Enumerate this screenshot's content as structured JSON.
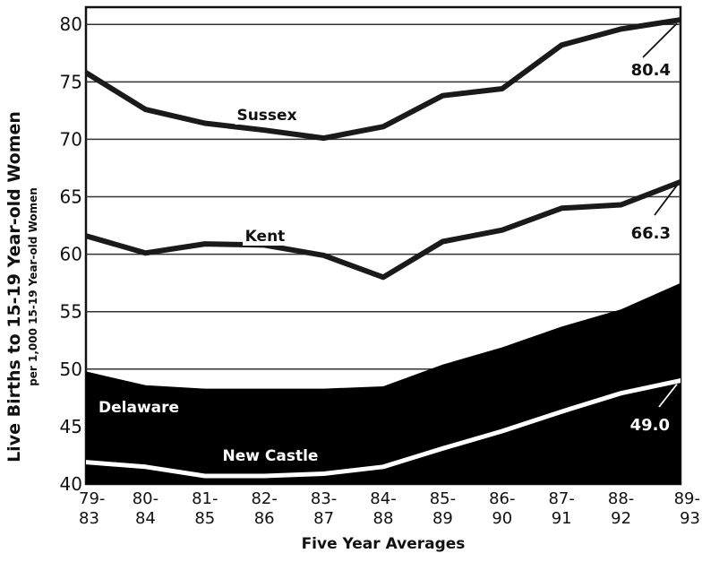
{
  "chart_data": {
    "type": "line",
    "xlabel": "Five Year Averages",
    "ylabel": "Live Births to 15-19 Year-old Women",
    "ylabel_sub": "per 1,000 15-19 Year-old Women",
    "ylim": [
      40,
      82
    ],
    "yticks": [
      40,
      45,
      50,
      55,
      60,
      65,
      70,
      75,
      80
    ],
    "grid": true,
    "categories": [
      [
        "79-",
        "83"
      ],
      [
        "80-",
        "84"
      ],
      [
        "81-",
        "85"
      ],
      [
        "82-",
        "86"
      ],
      [
        "83-",
        "87"
      ],
      [
        "84-",
        "88"
      ],
      [
        "85-",
        "89"
      ],
      [
        "86-",
        "90"
      ],
      [
        "87-",
        "91"
      ],
      [
        "88-",
        "92"
      ],
      [
        "89-",
        "93"
      ]
    ],
    "series": [
      {
        "name": "Sussex",
        "style": "line",
        "color": "#1a1a1a",
        "values": [
          75.8,
          72.6,
          71.4,
          70.8,
          70.1,
          71.1,
          73.8,
          74.4,
          78.2,
          79.6,
          80.4
        ],
        "end_label": "80.4"
      },
      {
        "name": "Kent",
        "style": "line",
        "color": "#1a1a1a",
        "values": [
          61.6,
          60.1,
          60.9,
          60.8,
          59.9,
          58.0,
          61.1,
          62.1,
          64.0,
          64.3,
          66.3
        ],
        "end_label": "66.3"
      },
      {
        "name": "Delaware",
        "style": "area",
        "color": "#000000",
        "values": [
          49.8,
          48.6,
          48.3,
          48.3,
          48.3,
          48.5,
          50.4,
          51.9,
          53.7,
          55.2,
          57.5
        ]
      },
      {
        "name": "New Castle",
        "style": "line-white",
        "color": "#ffffff",
        "values": [
          41.9,
          41.5,
          40.7,
          40.7,
          40.9,
          41.5,
          43.1,
          44.6,
          46.3,
          47.9,
          49.0
        ],
        "end_label": "49.0"
      }
    ]
  }
}
